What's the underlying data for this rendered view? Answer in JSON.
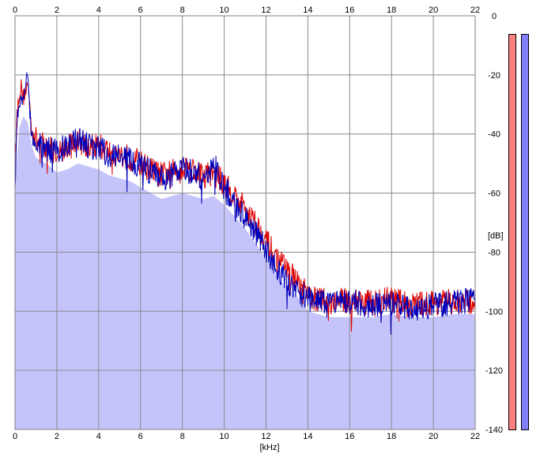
{
  "chart_data": {
    "type": "area",
    "title": "",
    "xlabel": "[kHz]",
    "ylabel": "[dB]",
    "xlim": [
      0,
      22
    ],
    "ylim": [
      -140,
      0
    ],
    "x_ticks": [
      "0",
      "2",
      "4",
      "6",
      "8",
      "10",
      "12",
      "14",
      "16",
      "18",
      "20",
      "22"
    ],
    "y_ticks": [
      "0",
      "-20",
      "-40",
      "-60",
      "-80",
      "-100",
      "-120",
      "-140"
    ],
    "grid": true,
    "fill_color": "#c4c4fb",
    "series": [
      {
        "color": "#dd0000",
        "x": [
          0,
          0.1,
          0.2,
          0.3,
          0.4,
          0.5,
          0.6,
          0.7,
          0.8,
          1,
          1.5,
          2,
          2.5,
          3,
          3.5,
          4,
          4.5,
          5,
          5.5,
          6,
          6.5,
          7,
          7.5,
          8,
          8.5,
          9,
          9.5,
          10,
          10.5,
          11,
          11.5,
          12,
          12.5,
          13,
          13.5,
          14,
          15,
          16,
          17,
          18,
          19,
          20,
          21,
          22
        ],
        "values": [
          -50,
          -33,
          -26,
          -24,
          -28,
          -25,
          -23,
          -30,
          -38,
          -42,
          -44,
          -46,
          -45,
          -42,
          -44,
          -44,
          -46,
          -47,
          -48,
          -50,
          -52,
          -54,
          -53,
          -51,
          -52,
          -54,
          -53,
          -57,
          -61,
          -65,
          -70,
          -76,
          -82,
          -86,
          -90,
          -95,
          -97,
          -96,
          -97,
          -96,
          -98,
          -97,
          -97,
          -97
        ]
      },
      {
        "color": "#0000bb",
        "x": [
          0,
          0.1,
          0.2,
          0.3,
          0.4,
          0.5,
          0.6,
          0.7,
          0.8,
          1,
          1.5,
          2,
          2.5,
          3,
          3.5,
          4,
          4.5,
          5,
          5.5,
          6,
          6.5,
          7,
          7.5,
          8,
          8.5,
          9,
          9.5,
          10,
          10.5,
          11,
          11.5,
          12,
          12.5,
          13,
          13.5,
          14,
          15,
          16,
          17,
          18,
          19,
          20,
          21,
          22
        ],
        "values": [
          -58,
          -36,
          -29,
          -27,
          -30,
          -24,
          -18,
          -32,
          -40,
          -43,
          -45,
          -46,
          -44,
          -42,
          -44,
          -45,
          -47,
          -48,
          -49,
          -51,
          -53,
          -55,
          -54,
          -52,
          -53,
          -55,
          -50,
          -58,
          -63,
          -68,
          -73,
          -79,
          -86,
          -90,
          -93,
          -96,
          -98,
          -97,
          -98,
          -97,
          -99,
          -98,
          -97,
          -96
        ]
      },
      {
        "color": "#c4c4fb",
        "x": [
          0,
          0.2,
          0.4,
          0.6,
          0.8,
          1,
          1.5,
          2,
          2.5,
          3,
          3.5,
          4,
          4.5,
          5,
          5.5,
          6,
          6.5,
          7,
          7.5,
          8,
          8.5,
          9,
          9.5,
          10,
          10.5,
          11,
          11.5,
          12,
          12.5,
          13,
          13.5,
          14,
          15,
          16,
          17,
          18,
          19,
          20,
          21,
          22
        ],
        "values": [
          -58,
          -38,
          -34,
          -36,
          -44,
          -48,
          -50,
          -53,
          -52,
          -50,
          -51,
          -52,
          -54,
          -55,
          -56,
          -58,
          -60,
          -62,
          -61,
          -60,
          -61,
          -62,
          -61,
          -64,
          -68,
          -72,
          -77,
          -82,
          -88,
          -92,
          -95,
          -100,
          -102,
          -102,
          -102,
          -101,
          -102,
          -102,
          -101,
          -101
        ]
      }
    ]
  },
  "meters": [
    {
      "color": "#fb8080",
      "level": 1.0
    },
    {
      "color": "#8080fb",
      "level": 1.0
    }
  ]
}
